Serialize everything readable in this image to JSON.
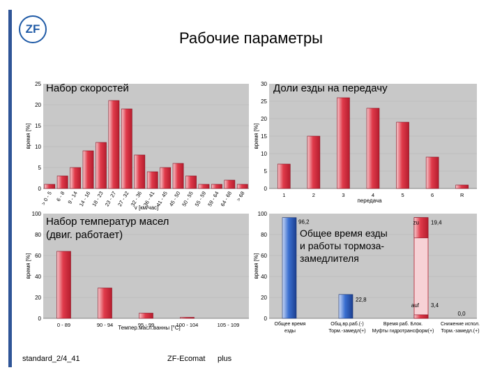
{
  "page": {
    "title": "Рабочие параметры",
    "logo_text": "ZF",
    "footer_left": "standard_2/4_41",
    "footer_center": "ZF-Ecomat",
    "footer_right": "plus"
  },
  "colors": {
    "panel_bg": "#c8c8c8",
    "bar_red": "#e03a4a",
    "bar_red_light": "#f7d2d6",
    "bar_blue": "#3a6fd0",
    "accent": "#1f5aa6"
  },
  "chart_data": [
    {
      "type": "bar",
      "title": "Набор скоростей",
      "ylabel": "время [%]",
      "xlabel": "v [км/час]",
      "ylim": [
        0,
        25
      ],
      "yticks": [
        0,
        5,
        10,
        15,
        20,
        25
      ],
      "categories": [
        "> 0 - 5",
        "6 - 8",
        "9 - 14",
        "14 - 16",
        "18 - 23",
        "23 - 27",
        "27 - 32",
        "32 - 36",
        "36 - 41",
        "41 - 45",
        "45 - 50",
        "50 - 55",
        "55 - 59",
        "59 - 64",
        "64 - 68",
        "> 68"
      ],
      "values": [
        1,
        3,
        5,
        9,
        11,
        21,
        19,
        8,
        4,
        5,
        6,
        3,
        1,
        1,
        2,
        1
      ]
    },
    {
      "type": "bar",
      "title": "Доли езды на передачу",
      "ylabel": "время [%]",
      "xlabel": "передача",
      "ylim": [
        0,
        30
      ],
      "yticks": [
        0,
        5,
        10,
        15,
        20,
        25,
        30
      ],
      "categories": [
        "1",
        "2",
        "3",
        "4",
        "5",
        "6",
        "R"
      ],
      "values": [
        7,
        15,
        26,
        23,
        19,
        9,
        1
      ]
    },
    {
      "type": "bar",
      "title": "Набор температур масел (двиг. работает)",
      "ylabel": "время [%]",
      "xlabel": "Темпер.масл.ванны [°C]",
      "ylim": [
        0,
        100
      ],
      "yticks": [
        0,
        20,
        40,
        60,
        80,
        100
      ],
      "categories": [
        "0 - 89",
        "90 - 94",
        "95 - 99",
        "100 - 104",
        "105 - 109"
      ],
      "values": [
        64,
        29,
        5,
        1,
        0
      ]
    },
    {
      "type": "bar",
      "title": "Общее время езды и работы тормоза-замедлителя",
      "ylabel": "время [%]",
      "ylim": [
        0,
        100
      ],
      "yticks": [
        0,
        20,
        40,
        60,
        80,
        100
      ],
      "categories": [
        "Общее время езды",
        "Общ.вр.раб.(-) Торм.-замедл(+)",
        "Время раб. Блок. Муфты гидротрансформ(+)",
        "Снижение испол. Торм.-замедл.(+)"
      ],
      "values": [
        96.2,
        22.8,
        3.4,
        0.0
      ],
      "value_labels": [
        "96,2",
        "22,8",
        "3,4",
        "0,0"
      ],
      "stack_top": {
        "value": 19.4,
        "label": "19,4",
        "tag": "zu"
      },
      "stack_bottom": {
        "value": 3.4,
        "label": "3,4",
        "tag": "auf"
      }
    }
  ]
}
